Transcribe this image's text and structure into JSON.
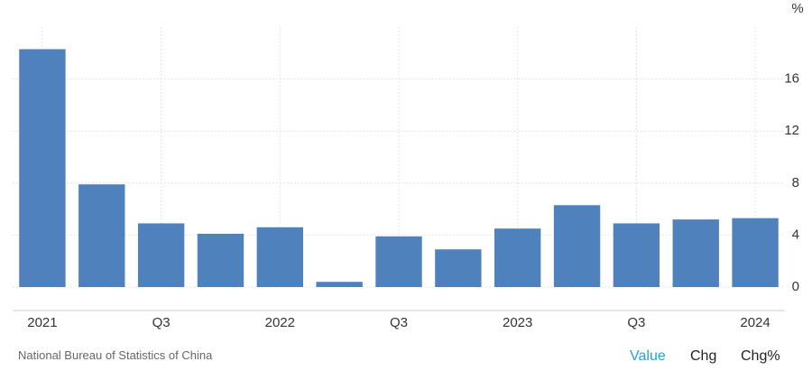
{
  "chart_data": {
    "type": "bar",
    "unit": "%",
    "categories": [
      "2021",
      null,
      "Q3",
      null,
      "2022",
      null,
      "Q3",
      null,
      "2023",
      null,
      "Q3",
      null,
      "2024"
    ],
    "values": [
      18.3,
      7.9,
      4.9,
      4.1,
      4.6,
      0.4,
      3.9,
      2.9,
      4.5,
      6.3,
      4.9,
      5.2,
      5.3
    ],
    "color": "#4f81bd",
    "ylim": [
      0,
      20
    ],
    "yticks": [
      0,
      4,
      8,
      12,
      16
    ],
    "grid": true
  },
  "source": "National Bureau of Statistics of China",
  "controls": [
    "Value",
    "Chg",
    "Chg%"
  ]
}
